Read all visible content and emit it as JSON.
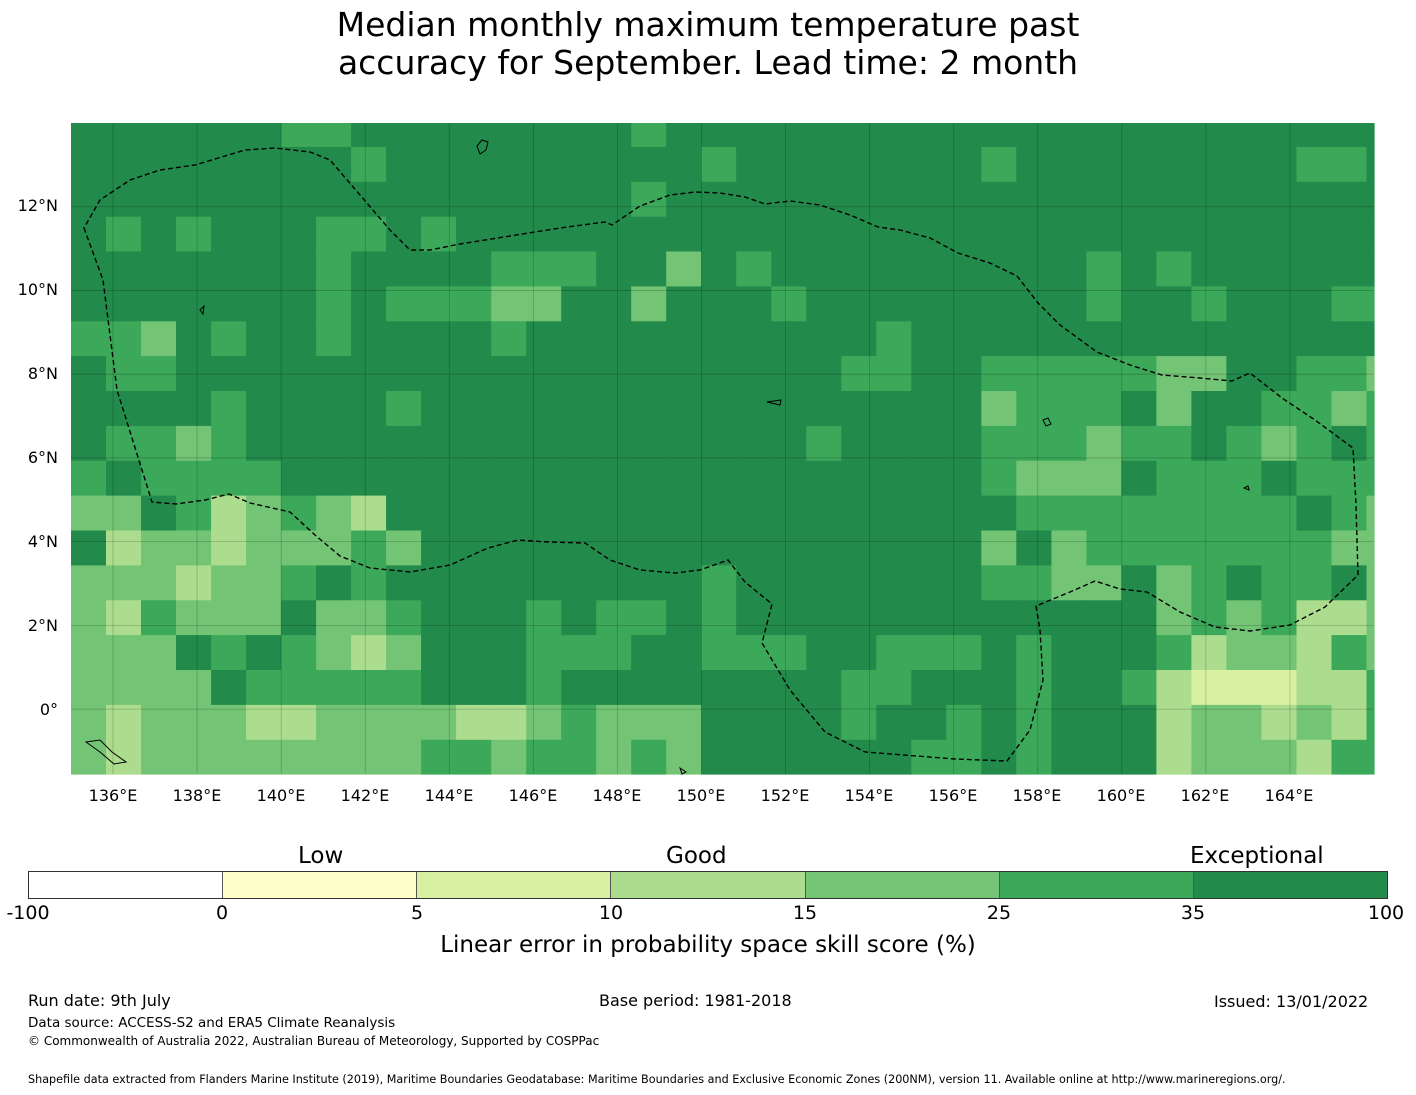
{
  "title": {
    "line1": "Median monthly maximum temperature past",
    "line2": "accuracy for September. Lead time: 2 month"
  },
  "map": {
    "lat_labels": [
      "12°N",
      "10°N",
      "8°N",
      "6°N",
      "4°N",
      "2°N",
      "0°"
    ],
    "lon_labels": [
      "136°E",
      "138°E",
      "140°E",
      "142°E",
      "144°E",
      "146°E",
      "148°E",
      "150°E",
      "152°E",
      "154°E",
      "156°E",
      "158°E",
      "160°E",
      "162°E",
      "164°E"
    ],
    "lon_range": [
      135,
      166
    ],
    "lat_range": [
      -1.55,
      14.0
    ],
    "grid_resolution_deg": 0.833,
    "gridlines": true,
    "eez_boundary": "dashed",
    "colors": {
      "c35_100": "#228a4a",
      "c25_35": "#3ca859",
      "c15_25": "#74c476",
      "c10_15": "#acdd8e",
      "c5_10": "#d9f0a3",
      "c0_5": "#ffffcc",
      "cneg": "#ffffff"
    },
    "region_scores": [
      {
        "area": "Eastern block 2N-8N, 156E-166E",
        "class": "25-35"
      },
      {
        "area": "Southwest 0N-5N, 135E-142E",
        "class": "15-25"
      },
      {
        "area": "Southeast 0N-2N, 161E-166E",
        "class": "10-15"
      },
      {
        "area": "Central EEZ",
        "class": "35-100"
      }
    ]
  },
  "colorbar": {
    "categories": [
      "Low",
      "Good",
      "Exceptional"
    ],
    "ticks": [
      "-100",
      "0",
      "5",
      "10",
      "15",
      "25",
      "35",
      "100"
    ],
    "segment_colors": [
      "#ffffff",
      "#ffffcc",
      "#d9f0a3",
      "#acdd8e",
      "#74c476",
      "#3ca859",
      "#228a4a"
    ],
    "label": "Linear error in probability space skill score (%)"
  },
  "footer": {
    "run_date": "Run date: 9th July",
    "base_period": "Base period: 1981-2018",
    "issued": "Issued: 13/01/2022",
    "data_source": "Data source: ACCESS-S2 and ERA5 Climate Reanalysis",
    "copyright": "© Commonwealth of Australia 2022, Australian Bureau of Meteorology, Supported by COSPPac",
    "shapefile": "Shapefile data extracted from Flanders Marine Institute (2019), Maritime Boundaries Geodatabase: Maritime Boundaries and Exclusive Economic Zones (200NM), version 11. Available online at http://www.marineregions.org/."
  }
}
